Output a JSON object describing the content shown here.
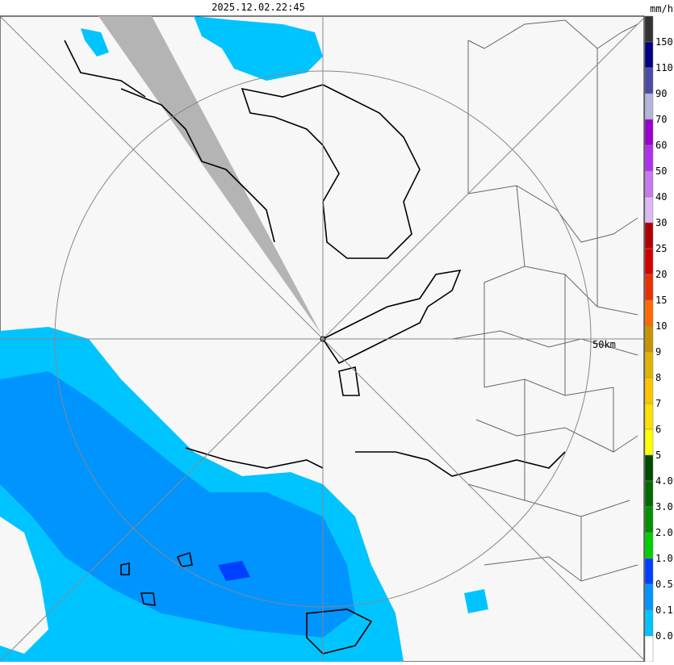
{
  "header": {
    "timestamp": "2025.12.02.22:45",
    "unit": "mm/h"
  },
  "map": {
    "range_label": "50km"
  },
  "legend": {
    "labels": [
      "150",
      "110",
      "90",
      "70",
      "60",
      "50",
      "40",
      "30",
      "25",
      "20",
      "15",
      "10",
      "9",
      "8",
      "7",
      "6",
      "5",
      "4.0",
      "3.0",
      "2.0",
      "1.0",
      "0.5",
      "0.1",
      "0.0"
    ],
    "colors": [
      "#333333",
      "#000080",
      "#4a4aa8",
      "#b4b4dc",
      "#9a00cc",
      "#b030f0",
      "#c878f0",
      "#dcb8f4",
      "#b00000",
      "#d40000",
      "#ea3000",
      "#ff6a00",
      "#c89400",
      "#e0b400",
      "#ffc400",
      "#ffe000",
      "#ffff00",
      "#004a00",
      "#006a00",
      "#009000",
      "#00d000",
      "#0040ff",
      "#0094ff",
      "#00c4ff",
      "#ffffff"
    ]
  }
}
